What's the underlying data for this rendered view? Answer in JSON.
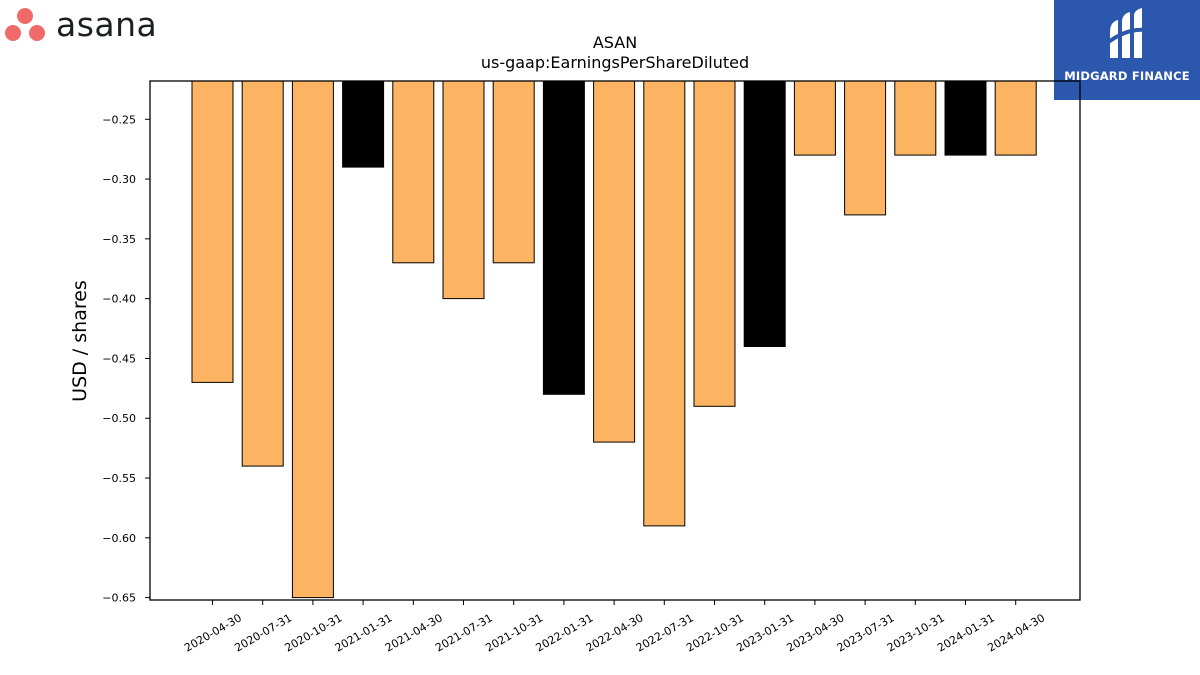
{
  "branding": {
    "left_logo_text": "asana",
    "right_logo_text": "MIDGARD FINANCE",
    "right_logo_bg": "#2b57ad"
  },
  "chart_data": {
    "type": "bar",
    "title": "ASAN",
    "subtitle": "us-gaap:EarningsPerShareDiluted",
    "xlabel": "",
    "ylabel": "USD / shares",
    "categories": [
      "2020-04-30",
      "2020-07-31",
      "2020-10-31",
      "2021-01-31",
      "2021-04-30",
      "2021-07-31",
      "2021-10-31",
      "2022-01-31",
      "2022-04-30",
      "2022-07-31",
      "2022-10-31",
      "2023-01-31",
      "2023-04-30",
      "2023-07-31",
      "2023-10-31",
      "2024-01-31",
      "2024-04-30"
    ],
    "values": [
      -0.47,
      -0.54,
      -0.65,
      -0.29,
      -0.37,
      -0.4,
      -0.37,
      -0.48,
      -0.52,
      -0.59,
      -0.49,
      -0.44,
      -0.28,
      -0.33,
      -0.28,
      -0.28,
      -0.28
    ],
    "period_type": [
      "quarter",
      "quarter",
      "quarter",
      "annual",
      "quarter",
      "quarter",
      "quarter",
      "annual",
      "quarter",
      "quarter",
      "quarter",
      "annual",
      "quarter",
      "quarter",
      "quarter",
      "annual",
      "quarter"
    ],
    "colors": {
      "quarter": "#fdb462",
      "annual": "#000000"
    },
    "ylim": [
      -0.652,
      -0.218
    ],
    "yticks": [
      -0.25,
      -0.3,
      -0.35,
      -0.4,
      -0.45,
      -0.5,
      -0.55,
      -0.6,
      -0.65
    ],
    "ytick_labels": [
      "−0.25",
      "−0.30",
      "−0.35",
      "−0.40",
      "−0.45",
      "−0.50",
      "−0.55",
      "−0.60",
      "−0.65"
    ],
    "grid": false,
    "legend": "none"
  }
}
